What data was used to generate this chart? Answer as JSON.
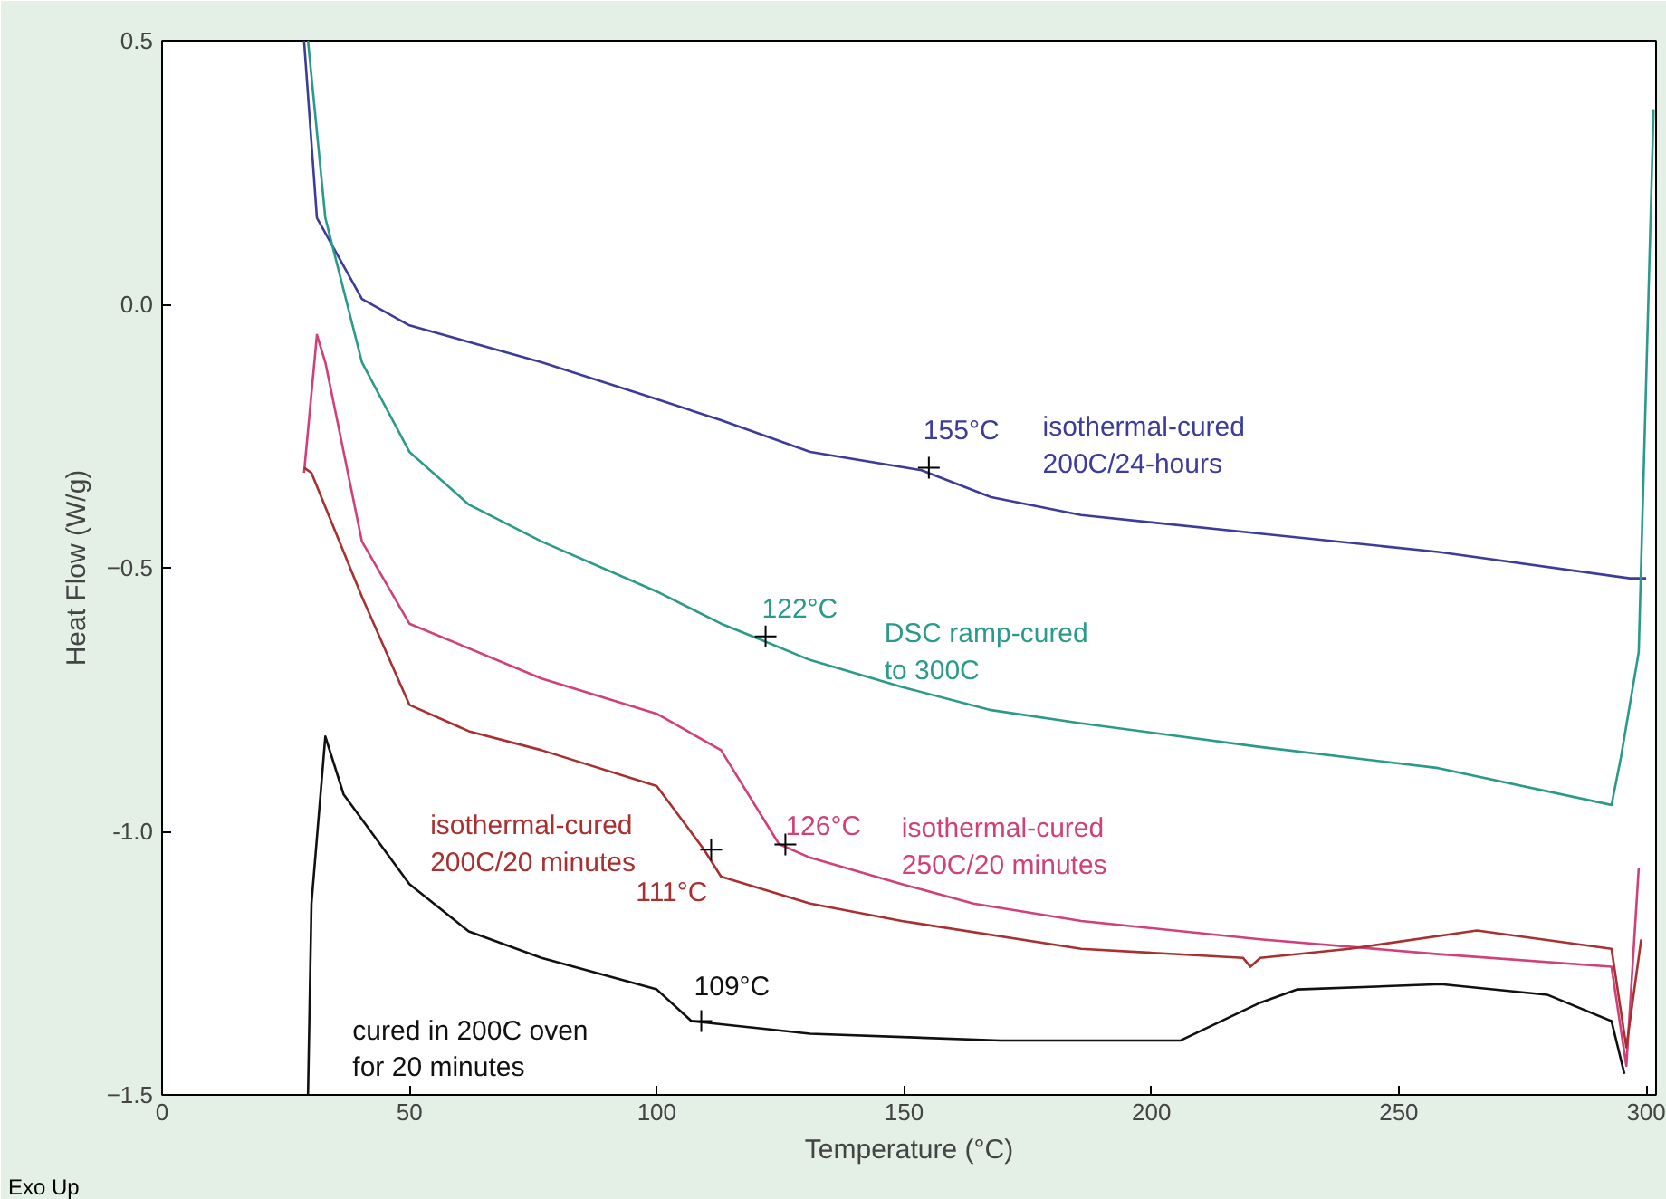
{
  "chart_data": {
    "type": "line",
    "xlabel": "Temperature (°C)",
    "ylabel": "Heat Flow (W/g)",
    "xlim": [
      0,
      302
    ],
    "ylim": [
      -1.5,
      0.5
    ],
    "xticks": [
      0,
      50,
      100,
      150,
      200,
      250,
      300
    ],
    "yticks": [
      0.5,
      {
        "value": 0,
        "label": "0.0"
      },
      -0.5,
      {
        "value": -1,
        "label": "-1.0"
      },
      -1.5
    ],
    "grid": false,
    "marker": "none",
    "line_style": "solid",
    "series": [
      {
        "name": "isothermal-cured\n200C/24-hours",
        "color": "#3c3c9a",
        "x": [
          28.7,
          31.3,
          40.4,
          50,
          76.7,
          100,
          113,
          131,
          153.5,
          167.6,
          185.8,
          222,
          258,
          296.7,
          300
        ],
        "values": [
          0.5,
          0.164,
          0.01,
          -0.04,
          -0.11,
          -0.18,
          -0.22,
          -0.28,
          -0.315,
          -0.366,
          -0.4,
          -0.435,
          -0.47,
          -0.52,
          -0.52
        ]
      },
      {
        "name": "DSC ramp-cured\nto 300C",
        "color": "#2a9a8a",
        "x": [
          29.5,
          33,
          40.4,
          50,
          62,
          76.7,
          100,
          113,
          120.4,
          131,
          149.5,
          167.6,
          185.8,
          222,
          258,
          293,
          294.9,
          298.5,
          301.5
        ],
        "values": [
          0.5,
          0.164,
          -0.11,
          -0.28,
          -0.38,
          -0.45,
          -0.545,
          -0.606,
          -0.634,
          -0.675,
          -0.726,
          -0.77,
          -0.795,
          -0.84,
          -0.88,
          -0.95,
          -0.86,
          -0.66,
          0.37
        ]
      },
      {
        "name": "isothermal-cured\n250C/20 minutes",
        "color": "#d0407a",
        "x": [
          28.7,
          31.3,
          33,
          40.4,
          50,
          76.7,
          100,
          113,
          124.7,
          131,
          149.5,
          164,
          185.8,
          222,
          258,
          293,
          296,
          298.5
        ],
        "values": [
          -0.32,
          -0.058,
          -0.11,
          -0.45,
          -0.606,
          -0.71,
          -0.777,
          -0.846,
          -1.024,
          -1.05,
          -1.1,
          -1.137,
          -1.17,
          -1.205,
          -1.233,
          -1.257,
          -1.445,
          -1.07
        ]
      },
      {
        "name": "isothermal-cured\n200C/20 minutes",
        "color": "#a83030",
        "x": [
          28.7,
          30.2,
          40.4,
          50,
          62,
          76.7,
          100,
          109.5,
          113,
          131,
          149.5,
          185.8,
          218.5,
          220,
          222,
          240,
          265.8,
          293,
          296,
          299
        ],
        "values": [
          -0.31,
          -0.32,
          -0.555,
          -0.76,
          -0.81,
          -0.846,
          -0.914,
          -1.034,
          -1.086,
          -1.137,
          -1.17,
          -1.223,
          -1.24,
          -1.257,
          -1.24,
          -1.223,
          -1.188,
          -1.223,
          -1.41,
          -1.205
        ]
      },
      {
        "name": "cured in 200C oven\nfor 20 minutes",
        "color": "#111111",
        "x": [
          29.5,
          30.2,
          33,
          36.7,
          50,
          62,
          76.7,
          100,
          107,
          131,
          169.5,
          205.8,
          222,
          229.5,
          258.5,
          280,
          293,
          295.6
        ],
        "values": [
          -1.5,
          -1.137,
          -0.82,
          -0.93,
          -1.1,
          -1.19,
          -1.24,
          -1.3,
          -1.36,
          -1.384,
          -1.397,
          -1.397,
          -1.325,
          -1.3,
          -1.29,
          -1.31,
          -1.36,
          -1.46
        ]
      }
    ],
    "annotations": [
      {
        "text": "155°C",
        "x": 155,
        "y": -0.31
      },
      {
        "text": "122°C",
        "x": 122,
        "y": -0.63
      },
      {
        "text": "126°C",
        "x": 126,
        "y": -1.025
      },
      {
        "text": "111°C",
        "x": 111,
        "y": -1.035
      },
      {
        "text": "109°C",
        "x": 109,
        "y": -1.36
      },
      "Exo Up"
    ]
  }
}
